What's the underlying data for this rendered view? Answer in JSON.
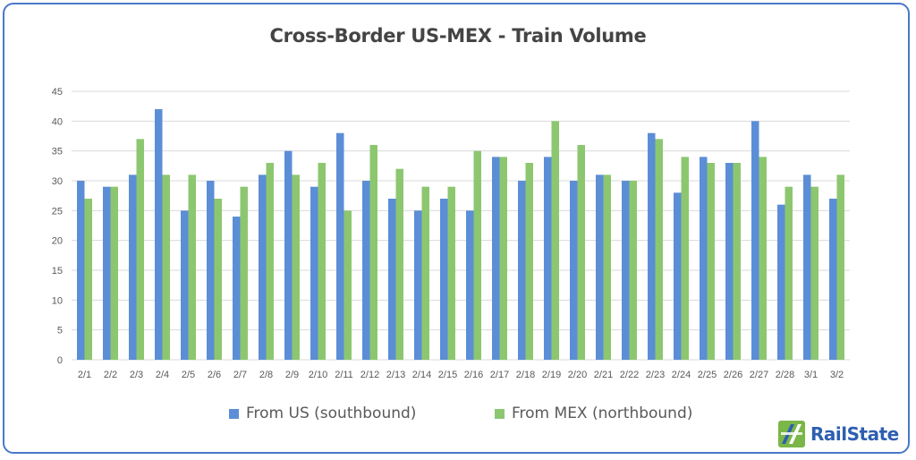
{
  "title": "Cross-Border US-MEX - Train Volume",
  "colors": {
    "us": "#5b8ed6",
    "mex": "#8cc770",
    "grid": "#d9d9d9",
    "frame": "#4a78c8",
    "logo_blue": "#2e5fb0",
    "logo_green": "#7ab648"
  },
  "legend": {
    "us_label": "From US (southbound)",
    "mex_label": "From MEX (northbound)"
  },
  "logo": {
    "text": "RailState",
    "icon": "railstate-logo-icon"
  },
  "chart_data": {
    "type": "bar",
    "title": "Cross-Border US-MEX - Train Volume",
    "xlabel": "",
    "ylabel": "",
    "ylim": [
      0,
      45
    ],
    "yticks": [
      0,
      5,
      10,
      15,
      20,
      25,
      30,
      35,
      40,
      45
    ],
    "grid": true,
    "legend_position": "bottom",
    "categories": [
      "2/1",
      "2/2",
      "2/3",
      "2/4",
      "2/5",
      "2/6",
      "2/7",
      "2/8",
      "2/9",
      "2/10",
      "2/11",
      "2/12",
      "2/13",
      "2/14",
      "2/15",
      "2/16",
      "2/17",
      "2/18",
      "2/19",
      "2/20",
      "2/21",
      "2/22",
      "2/23",
      "2/24",
      "2/25",
      "2/26",
      "2/27",
      "2/28",
      "3/1",
      "3/2"
    ],
    "series": [
      {
        "name": "From US (southbound)",
        "values": [
          30,
          29,
          31,
          42,
          25,
          30,
          24,
          31,
          35,
          29,
          38,
          30,
          27,
          25,
          27,
          25,
          34,
          30,
          34,
          30,
          31,
          30,
          38,
          28,
          34,
          33,
          40,
          26,
          31,
          27
        ]
      },
      {
        "name": "From MEX (northbound)",
        "values": [
          27,
          29,
          37,
          31,
          31,
          27,
          29,
          33,
          31,
          33,
          25,
          36,
          32,
          29,
          29,
          35,
          34,
          33,
          40,
          36,
          31,
          30,
          37,
          34,
          33,
          33,
          34,
          29,
          29,
          31
        ]
      }
    ]
  }
}
